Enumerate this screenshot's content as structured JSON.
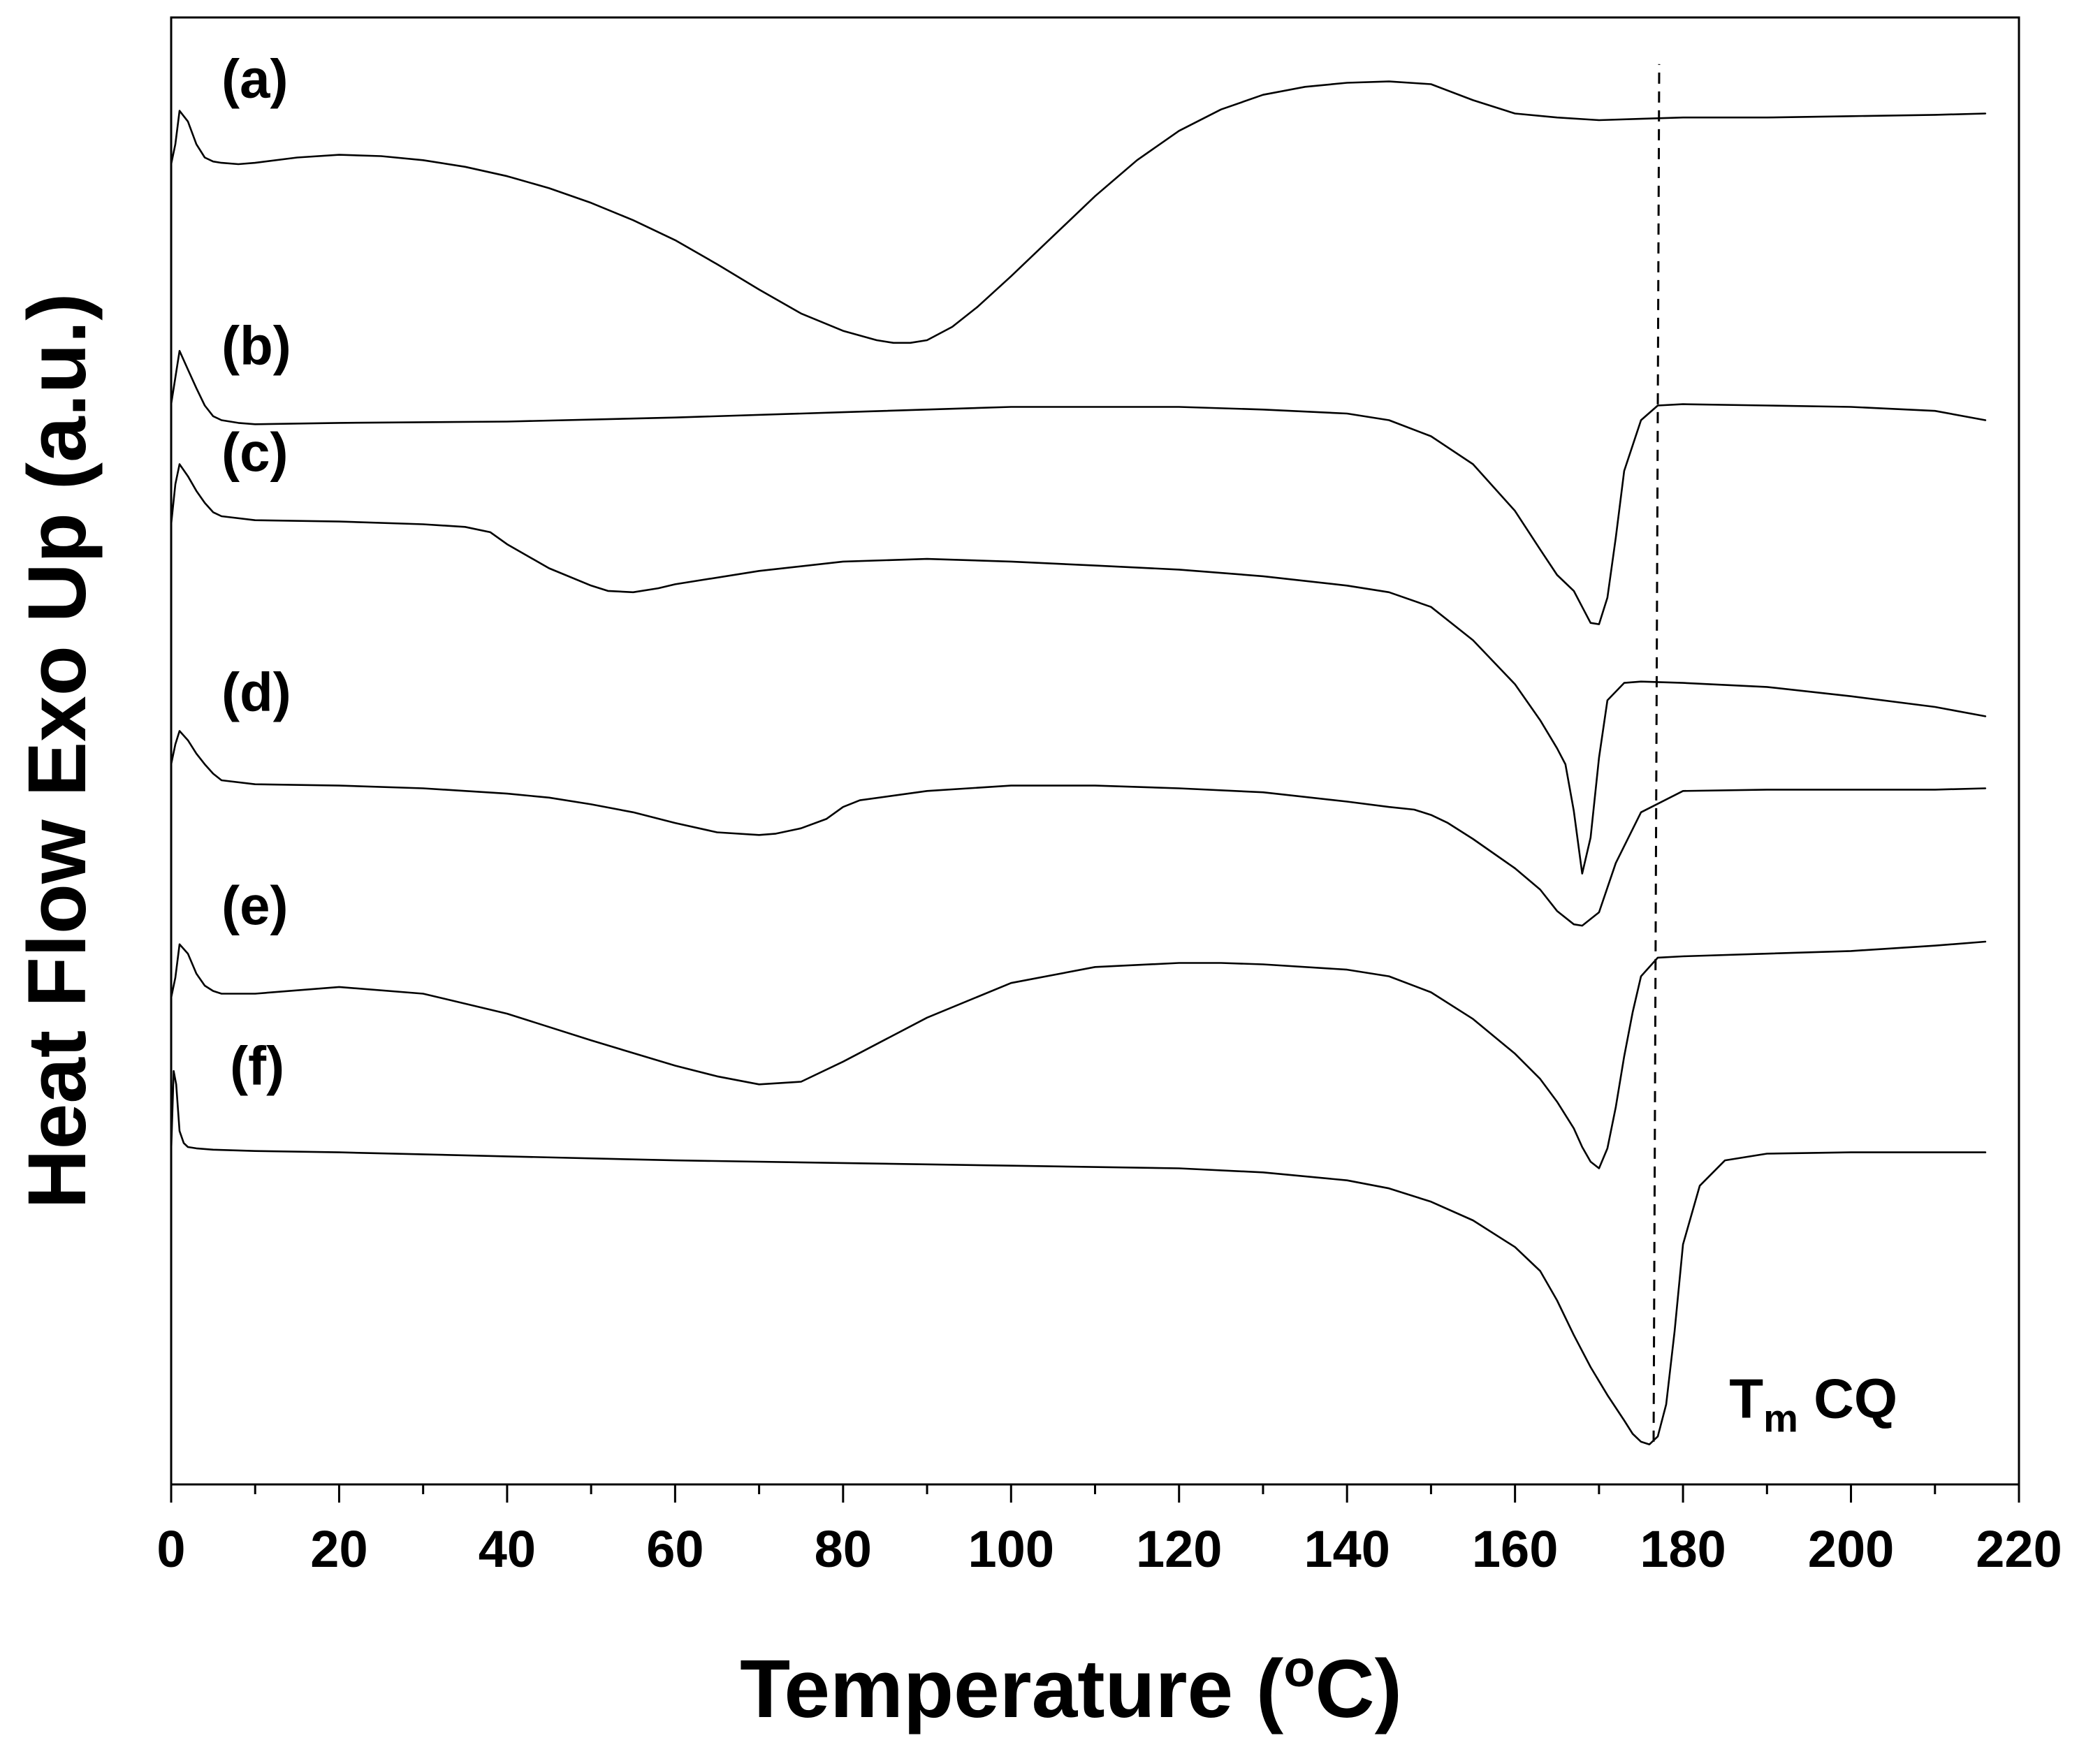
{
  "chart_data": {
    "type": "line",
    "title": "",
    "xlabel": "Temperature (°C)",
    "xlabel_main": "Temperature (",
    "xlabel_degree": "o",
    "xlabel_unit": "C)",
    "ylabel": "Heat Flow Exo Up (a.u.)",
    "xlim": [
      0,
      220
    ],
    "ylim": [
      0,
      110
    ],
    "xticks": [
      0,
      20,
      40,
      60,
      80,
      100,
      120,
      140,
      160,
      180,
      200,
      220
    ],
    "xticks_minor_step": 10,
    "y_tick_labels_shown": false,
    "grid": false,
    "series": [
      {
        "name": "(a)",
        "label_at": [
          6,
          104
        ],
        "x": [
          0,
          0.5,
          1,
          2,
          3,
          4,
          5,
          6,
          8,
          10,
          15,
          20,
          25,
          30,
          35,
          40,
          45,
          50,
          55,
          60,
          65,
          70,
          75,
          80,
          84,
          86,
          88,
          90,
          93,
          96,
          100,
          105,
          110,
          115,
          120,
          125,
          130,
          135,
          140,
          145,
          150,
          155,
          160,
          165,
          170,
          175,
          180,
          190,
          200,
          210,
          216
        ],
        "y": [
          99.0,
          100.5,
          103.0,
          102.2,
          100.5,
          99.5,
          99.2,
          99.1,
          99.0,
          99.1,
          99.5,
          99.7,
          99.6,
          99.3,
          98.8,
          98.1,
          97.2,
          96.1,
          94.8,
          93.3,
          91.5,
          89.6,
          87.8,
          86.5,
          85.8,
          85.6,
          85.6,
          85.8,
          86.8,
          88.3,
          90.6,
          93.6,
          96.6,
          99.3,
          101.5,
          103.1,
          104.2,
          104.8,
          105.1,
          105.2,
          105.0,
          103.8,
          102.8,
          102.5,
          102.3,
          102.4,
          102.5,
          102.5,
          102.6,
          102.7,
          102.8
        ]
      },
      {
        "name": "(b)",
        "label_at": [
          6,
          84
        ],
        "x": [
          0,
          0.5,
          1,
          2,
          3,
          4,
          5,
          6,
          8,
          10,
          20,
          40,
          60,
          80,
          100,
          120,
          130,
          140,
          145,
          150,
          155,
          160,
          163,
          165,
          167,
          168,
          169,
          170,
          171,
          172,
          173,
          175,
          177,
          180,
          190,
          200,
          210,
          216
        ],
        "y": [
          81.0,
          83.0,
          85.0,
          83.6,
          82.2,
          80.9,
          80.1,
          79.8,
          79.6,
          79.5,
          79.6,
          79.7,
          80.0,
          80.4,
          80.8,
          80.8,
          80.6,
          80.3,
          79.8,
          78.6,
          76.5,
          73.0,
          70.1,
          68.2,
          67.0,
          65.8,
          64.6,
          64.5,
          66.5,
          71.0,
          76.0,
          79.8,
          80.9,
          81.0,
          80.9,
          80.8,
          80.5,
          79.8
        ]
      },
      {
        "name": "(c)",
        "label_at": [
          6,
          76
        ],
        "x": [
          0,
          0.5,
          1,
          2,
          3,
          4,
          5,
          6,
          10,
          20,
          30,
          35,
          38,
          40,
          45,
          50,
          52,
          55,
          58,
          60,
          70,
          80,
          90,
          100,
          110,
          120,
          130,
          140,
          145,
          150,
          155,
          160,
          163,
          165,
          166,
          167,
          168,
          169,
          170,
          171,
          173,
          175,
          180,
          190,
          200,
          210,
          216
        ],
        "y": [
          72.0,
          75.0,
          76.5,
          75.6,
          74.5,
          73.6,
          72.9,
          72.6,
          72.3,
          72.2,
          72.0,
          71.8,
          71.4,
          70.5,
          68.7,
          67.4,
          67.0,
          66.9,
          67.2,
          67.5,
          68.5,
          69.2,
          69.4,
          69.2,
          68.9,
          68.6,
          68.1,
          67.4,
          66.9,
          65.8,
          63.3,
          60.0,
          57.3,
          55.2,
          54.0,
          50.5,
          45.8,
          48.5,
          54.5,
          58.8,
          60.1,
          60.2,
          60.1,
          59.8,
          59.1,
          58.3,
          57.6
        ]
      },
      {
        "name": "(d)",
        "label_at": [
          6,
          58
        ],
        "x": [
          0,
          0.5,
          1,
          2,
          3,
          4,
          5,
          6,
          10,
          20,
          30,
          40,
          45,
          50,
          55,
          60,
          65,
          70,
          72,
          75,
          78,
          80,
          82,
          90,
          100,
          110,
          120,
          130,
          140,
          145,
          148,
          150,
          152,
          155,
          160,
          163,
          165,
          167,
          168,
          170,
          172,
          175,
          180,
          190,
          200,
          210,
          216
        ],
        "y": [
          54.0,
          55.5,
          56.5,
          55.8,
          54.8,
          54.0,
          53.3,
          52.8,
          52.5,
          52.4,
          52.2,
          51.8,
          51.5,
          51.0,
          50.4,
          49.6,
          48.9,
          48.7,
          48.8,
          49.2,
          49.9,
          50.8,
          51.3,
          52.0,
          52.4,
          52.4,
          52.2,
          51.9,
          51.2,
          50.8,
          50.6,
          50.2,
          49.6,
          48.4,
          46.2,
          44.6,
          43.0,
          42.0,
          41.9,
          42.9,
          46.6,
          50.4,
          52.0,
          52.1,
          52.1,
          52.1,
          52.2
        ]
      },
      {
        "name": "(e)",
        "label_at": [
          6,
          42
        ],
        "x": [
          0,
          0.5,
          1,
          2,
          3,
          4,
          5,
          6,
          10,
          20,
          30,
          40,
          50,
          60,
          65,
          70,
          75,
          80,
          90,
          100,
          110,
          120,
          125,
          130,
          140,
          145,
          150,
          155,
          160,
          163,
          165,
          167,
          168,
          169,
          170,
          171,
          172,
          173,
          174,
          175,
          177,
          180,
          190,
          200,
          210,
          216
        ],
        "y": [
          36.5,
          38.0,
          40.5,
          39.8,
          38.3,
          37.4,
          37.0,
          36.8,
          36.8,
          37.3,
          36.8,
          35.3,
          33.3,
          31.4,
          30.6,
          30.0,
          30.2,
          31.7,
          35.0,
          37.6,
          38.8,
          39.1,
          39.1,
          39.0,
          38.6,
          38.1,
          36.9,
          34.9,
          32.3,
          30.4,
          28.7,
          26.7,
          25.3,
          24.2,
          23.7,
          25.2,
          28.3,
          32.1,
          35.4,
          38.1,
          39.5,
          39.6,
          39.8,
          40.0,
          40.4,
          40.7
        ]
      },
      {
        "name": "(f)",
        "label_at": [
          7,
          30
        ],
        "x": [
          0,
          0.3,
          0.6,
          1,
          1.5,
          2,
          3,
          5,
          10,
          20,
          40,
          60,
          80,
          100,
          120,
          130,
          140,
          145,
          150,
          155,
          160,
          163,
          165,
          167,
          169,
          171,
          173,
          174,
          175,
          176,
          177,
          178,
          179,
          180,
          182,
          185,
          190,
          200,
          210,
          216
        ],
        "y": [
          25.0,
          31.0,
          30.0,
          26.5,
          25.6,
          25.3,
          25.2,
          25.1,
          25.0,
          24.9,
          24.6,
          24.3,
          24.1,
          23.9,
          23.7,
          23.4,
          22.8,
          22.2,
          21.2,
          19.8,
          17.8,
          16.0,
          13.8,
          11.2,
          8.8,
          6.7,
          4.8,
          3.8,
          3.2,
          3.0,
          3.6,
          6.0,
          11.5,
          18.0,
          22.4,
          24.3,
          24.8,
          24.9,
          24.9,
          24.9
        ]
      }
    ],
    "reference_line": {
      "x": 176.5,
      "y_from": 3.2,
      "y_to": 106.5,
      "style": "dashed"
    },
    "annotations": [
      {
        "id": "tm_cq",
        "text_main": "T",
        "text_sub": "m",
        "text_after": " CQ",
        "at": [
          185.5,
          5.0
        ]
      }
    ]
  }
}
